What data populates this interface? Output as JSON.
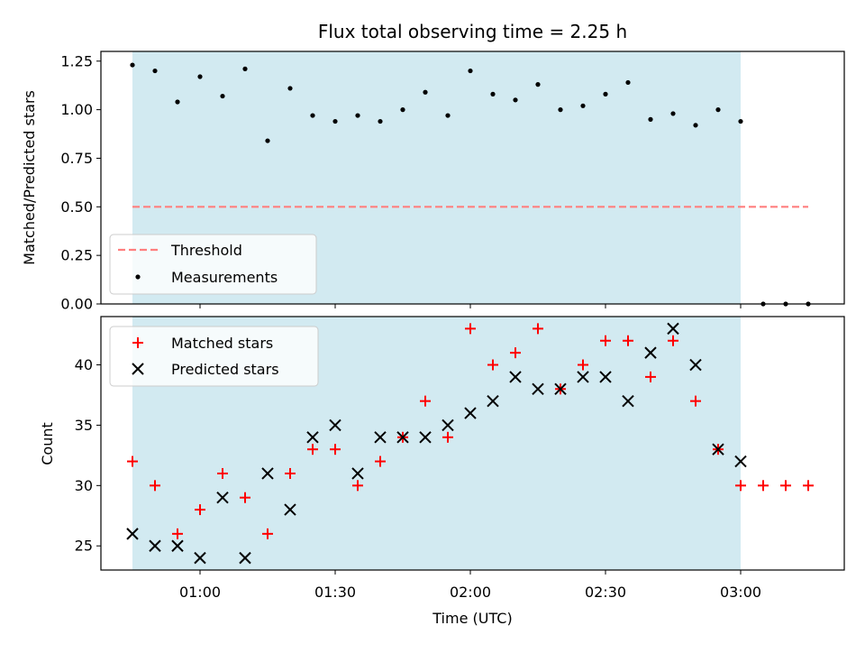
{
  "chart_data": [
    {
      "type": "scatter",
      "title": "Flux total observing time = 2.25 h",
      "ylabel": "Matched/Predicted stars",
      "ylim": [
        0.0,
        1.3
      ],
      "yticks": [
        "0.00",
        "0.25",
        "0.50",
        "0.75",
        "1.00",
        "1.25"
      ],
      "yticks_values": [
        0.0,
        0.25,
        0.5,
        0.75,
        1.0,
        1.25
      ],
      "shaded_range_minutes": [
        45,
        180
      ],
      "shaded_color": "#add8e6",
      "threshold": {
        "name": "Threshold",
        "value": 0.5,
        "x_range_minutes": [
          45,
          195
        ],
        "color": "#ff7f7f"
      },
      "series": [
        {
          "name": "Measurements",
          "color": "#000000",
          "x_minutes": [
            45,
            50,
            55,
            60,
            65,
            70,
            75,
            80,
            85,
            90,
            95,
            100,
            105,
            110,
            115,
            120,
            125,
            130,
            135,
            140,
            145,
            150,
            155,
            160,
            165,
            170,
            175,
            180,
            185,
            190,
            195
          ],
          "values": [
            1.23,
            1.2,
            1.04,
            1.17,
            1.07,
            1.21,
            0.84,
            1.11,
            0.97,
            0.94,
            0.97,
            0.94,
            1.0,
            1.09,
            0.97,
            1.2,
            1.08,
            1.05,
            1.13,
            1.0,
            1.02,
            1.08,
            1.14,
            0.95,
            0.98,
            0.92,
            1.0,
            0.94,
            0.0,
            0.0,
            0.0
          ]
        }
      ],
      "legend": {
        "position": "lower-left"
      }
    },
    {
      "type": "scatter",
      "xlabel": "Time (UTC)",
      "ylabel": "Count",
      "ylim": [
        23,
        44
      ],
      "yticks": [
        "25",
        "30",
        "35",
        "40"
      ],
      "yticks_values": [
        25,
        30,
        35,
        40
      ],
      "xlim_minutes": [
        38,
        203
      ],
      "xticks": [
        "01:00",
        "01:30",
        "02:00",
        "02:30",
        "03:00"
      ],
      "xticks_minutes": [
        60,
        90,
        120,
        150,
        180
      ],
      "shaded_range_minutes": [
        45,
        180
      ],
      "shaded_color": "#add8e6",
      "series": [
        {
          "name": "Matched stars",
          "marker": "plus",
          "color": "#ff0000",
          "x_minutes": [
            45,
            50,
            55,
            60,
            65,
            70,
            75,
            80,
            85,
            90,
            95,
            100,
            105,
            110,
            115,
            120,
            125,
            130,
            135,
            140,
            145,
            150,
            155,
            160,
            165,
            170,
            175,
            180,
            185,
            190,
            195
          ],
          "values": [
            32,
            30,
            26,
            28,
            31,
            29,
            26,
            31,
            33,
            33,
            30,
            32,
            34,
            37,
            34,
            43,
            40,
            41,
            43,
            38,
            40,
            42,
            42,
            39,
            42,
            37,
            33,
            30,
            30,
            30,
            30
          ]
        },
        {
          "name": "Predicted stars",
          "marker": "x",
          "color": "#000000",
          "x_minutes": [
            45,
            50,
            55,
            60,
            65,
            70,
            75,
            80,
            85,
            90,
            95,
            100,
            105,
            110,
            115,
            120,
            125,
            130,
            135,
            140,
            145,
            150,
            155,
            160,
            165,
            170,
            175,
            180
          ],
          "values": [
            26,
            25,
            25,
            24,
            29,
            24,
            31,
            28,
            34,
            35,
            31,
            34,
            34,
            34,
            35,
            36,
            37,
            39,
            38,
            38,
            39,
            39,
            37,
            41,
            43,
            40,
            33,
            32
          ]
        }
      ],
      "legend": {
        "position": "top-left"
      }
    }
  ]
}
